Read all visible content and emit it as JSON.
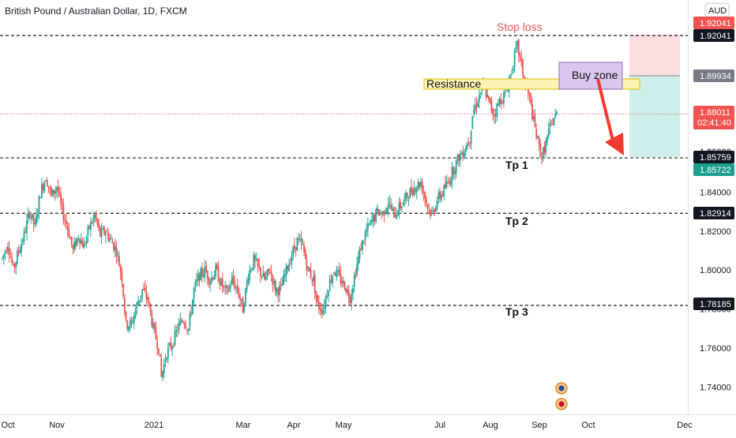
{
  "header": {
    "title": "British Pound / Australian Dollar, 1D, FXCM",
    "currency_badge": "AUD"
  },
  "annotations": {
    "stop_loss": "Stop loss",
    "resistance": "Resistance",
    "buy_zone": "Buy zone",
    "tp1": "Tp 1",
    "tp2": "Tp 2",
    "tp3": "Tp 3"
  },
  "price_labels": {
    "stop_top": "1.92041",
    "stop_line": "1.92041",
    "entry": "1.89934",
    "current_price": "1.88011",
    "countdown": "02:41:40",
    "hidden_tp1": "1.86000",
    "tp1_line": "1.85759",
    "tp1_green": "1.85722",
    "tp2_line": "1.82914",
    "tp3_line": "1.78185"
  },
  "colors": {
    "up": "#26a69a",
    "down": "#ef5350",
    "stop_loss_text": "#ef5350",
    "stop_zone": "#fcdede",
    "target_zone": "#cdeeea",
    "resistance_fill": "#fdf3b4",
    "buy_zone_fill": "#d9c7ef",
    "arrow": "#f23a2e",
    "dashed_line": "#222222",
    "label_dark": "#131722",
    "label_gray": "#787b86",
    "label_red": "#f05350",
    "label_green": "#1e9e8e"
  },
  "chart_data": {
    "type": "candlestick",
    "symbol": "GBPAUD",
    "timeframe": "1D",
    "y_ticks": [
      1.74,
      1.76,
      1.78,
      1.8,
      1.82,
      1.84,
      1.86
    ],
    "x_ticks": [
      "Oct",
      "Nov",
      "2021",
      "Mar",
      "Apr",
      "May",
      "Jul",
      "Aug",
      "Sep",
      "Oct",
      "Dec"
    ],
    "ylim": [
      1.727,
      1.936
    ],
    "levels": [
      {
        "label": "Stop loss",
        "price": 1.92041
      },
      {
        "label": "Tp 1",
        "price": 1.85759
      },
      {
        "label": "Tp 2",
        "price": 1.82914
      },
      {
        "label": "Tp 3",
        "price": 1.78185
      }
    ],
    "position": {
      "entry": 1.89934,
      "stop": 1.92041,
      "target": 1.85759
    },
    "resistance_zone": [
      1.8935,
      1.8985
    ],
    "buy_zone": [
      1.8935,
      1.9055
    ],
    "last_price": 1.88011,
    "path": [
      [
        0,
        1.806
      ],
      [
        4,
        1.814
      ],
      [
        8,
        1.8
      ],
      [
        12,
        1.81
      ],
      [
        16,
        1.818
      ],
      [
        20,
        1.83
      ],
      [
        24,
        1.822
      ],
      [
        28,
        1.84
      ],
      [
        32,
        1.848
      ],
      [
        36,
        1.838
      ],
      [
        40,
        1.843
      ],
      [
        44,
        1.83
      ],
      [
        48,
        1.822
      ],
      [
        52,
        1.81
      ],
      [
        56,
        1.818
      ],
      [
        60,
        1.812
      ],
      [
        64,
        1.822
      ],
      [
        68,
        1.828
      ],
      [
        72,
        1.818
      ],
      [
        76,
        1.82
      ],
      [
        80,
        1.815
      ],
      [
        84,
        1.81
      ],
      [
        88,
        1.796
      ],
      [
        91,
        1.772
      ],
      [
        95,
        1.772
      ],
      [
        99,
        1.782
      ],
      [
        103,
        1.79
      ],
      [
        107,
        1.785
      ],
      [
        111,
        1.77
      ],
      [
        115,
        1.76
      ],
      [
        117,
        1.745
      ],
      [
        121,
        1.758
      ],
      [
        125,
        1.762
      ],
      [
        129,
        1.77
      ],
      [
        133,
        1.775
      ],
      [
        137,
        1.77
      ],
      [
        141,
        1.79
      ],
      [
        145,
        1.797
      ],
      [
        149,
        1.8
      ],
      [
        153,
        1.795
      ],
      [
        157,
        1.8
      ],
      [
        161,
        1.793
      ],
      [
        165,
        1.788
      ],
      [
        169,
        1.795
      ],
      [
        173,
        1.79
      ],
      [
        177,
        1.78
      ],
      [
        181,
        1.798
      ],
      [
        185,
        1.805
      ],
      [
        189,
        1.8
      ],
      [
        193,
        1.795
      ],
      [
        197,
        1.8
      ],
      [
        201,
        1.79
      ],
      [
        205,
        1.79
      ],
      [
        209,
        1.8
      ],
      [
        213,
        1.808
      ],
      [
        217,
        1.815
      ],
      [
        221,
        1.812
      ],
      [
        225,
        1.8
      ],
      [
        229,
        1.795
      ],
      [
        232,
        1.782
      ],
      [
        236,
        1.78
      ],
      [
        240,
        1.792
      ],
      [
        244,
        1.8
      ],
      [
        248,
        1.796
      ],
      [
        252,
        1.792
      ],
      [
        256,
        1.786
      ],
      [
        260,
        1.8
      ],
      [
        264,
        1.812
      ],
      [
        268,
        1.82
      ],
      [
        272,
        1.825
      ],
      [
        276,
        1.83
      ],
      [
        280,
        1.829
      ],
      [
        284,
        1.835
      ],
      [
        288,
        1.828
      ],
      [
        292,
        1.832
      ],
      [
        296,
        1.836
      ],
      [
        300,
        1.84
      ],
      [
        304,
        1.843
      ],
      [
        308,
        1.845
      ],
      [
        312,
        1.835
      ],
      [
        316,
        1.828
      ],
      [
        320,
        1.836
      ],
      [
        324,
        1.84
      ],
      [
        328,
        1.845
      ],
      [
        332,
        1.852
      ],
      [
        336,
        1.858
      ],
      [
        340,
        1.862
      ],
      [
        344,
        1.868
      ],
      [
        346,
        1.88
      ],
      [
        350,
        1.888
      ],
      [
        354,
        1.895
      ],
      [
        358,
        1.886
      ],
      [
        362,
        1.88
      ],
      [
        366,
        1.887
      ],
      [
        370,
        1.89
      ],
      [
        373,
        1.897
      ],
      [
        377,
        1.91
      ],
      [
        379,
        1.915
      ],
      [
        382,
        1.905
      ],
      [
        385,
        1.895
      ],
      [
        388,
        1.888
      ],
      [
        391,
        1.876
      ],
      [
        394,
        1.866
      ],
      [
        397,
        1.858
      ],
      [
        400,
        1.865
      ],
      [
        403,
        1.873
      ],
      [
        406,
        1.878
      ],
      [
        408,
        1.88
      ]
    ]
  }
}
